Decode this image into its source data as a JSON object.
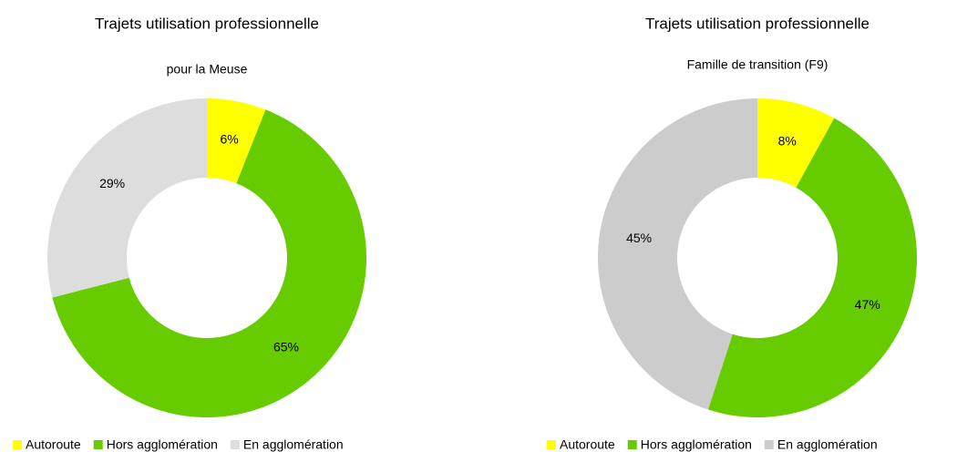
{
  "chart_data": [
    {
      "type": "pie",
      "title": "Trajets utilisation professionnelle",
      "subtitle": "pour la Meuse",
      "categories": [
        "Autoroute",
        "Hors agglomération",
        "En agglomération"
      ],
      "values": [
        6,
        65,
        29
      ],
      "value_labels": [
        "6%",
        "65%",
        "29%"
      ],
      "colors": [
        "#ffff00",
        "#66cc00",
        "#dddddd"
      ]
    },
    {
      "type": "pie",
      "title": "Trajets utilisation professionnelle",
      "subtitle": "Famille de transition (F9)",
      "categories": [
        "Autoroute",
        "Hors agglomération",
        "En agglomération"
      ],
      "values": [
        8,
        47,
        45
      ],
      "value_labels": [
        "8%",
        "47%",
        "45%"
      ],
      "colors": [
        "#ffff00",
        "#66cc00",
        "#cccccc"
      ]
    }
  ]
}
